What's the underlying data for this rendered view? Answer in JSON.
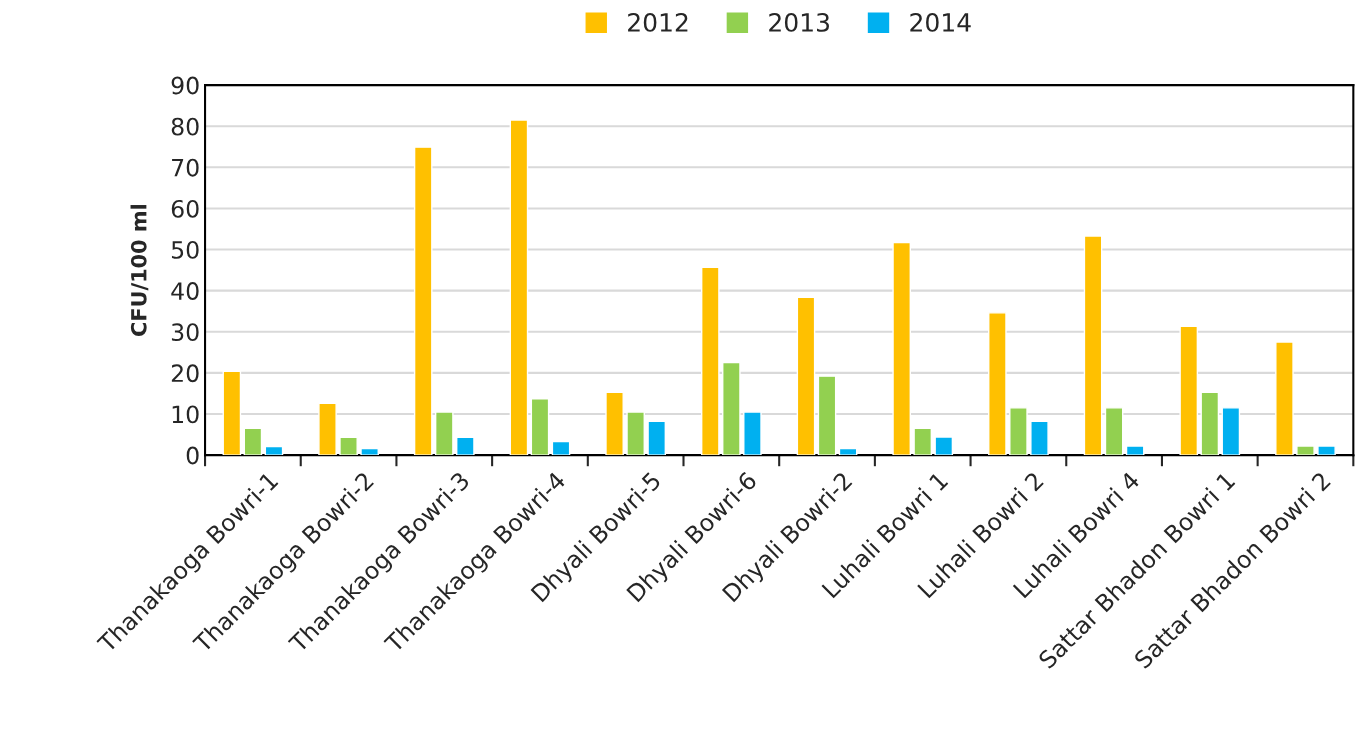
{
  "chart_data": {
    "type": "bar",
    "ylabel": "CFU/100 ml",
    "categories": [
      "Thanakaoga Bowri-1",
      "Thanakaoga Bowri-2",
      "Thanakaoga Bowri-3",
      "Thanakaoga Bowri-4",
      "Dhyali Bowri-5",
      "Dhyali Bowri-6",
      "Dhyali Bowri-2",
      "Luhali Bowri 1",
      "Luhali Bowri 2",
      "Luhali Bowri 4",
      "Sattar Bhadon Bowri 1",
      "Sattar Bhadon Bowri 2"
    ],
    "series": [
      {
        "name": "2012",
        "color": "#ffc000",
        "values": [
          20.4,
          12.6,
          74.9,
          81.5,
          15.3,
          45.7,
          38.4,
          51.7,
          34.6,
          53.3,
          31.3,
          27.5
        ]
      },
      {
        "name": "2013",
        "color": "#92d050",
        "values": [
          6.5,
          4.3,
          10.5,
          13.7,
          10.5,
          22.5,
          19.2,
          6.5,
          11.5,
          11.5,
          15.3,
          2.2
        ]
      },
      {
        "name": "2014",
        "color": "#00b0f0",
        "values": [
          2.1,
          1.6,
          4.3,
          3.3,
          8.2,
          10.5,
          1.6,
          4.4,
          8.2,
          2.2,
          11.5,
          2.2
        ]
      }
    ],
    "ylim": [
      0,
      90
    ],
    "yticks": [
      0,
      10,
      20,
      30,
      40,
      50,
      60,
      70,
      80,
      90
    ],
    "grid": "y",
    "legend": "top"
  }
}
